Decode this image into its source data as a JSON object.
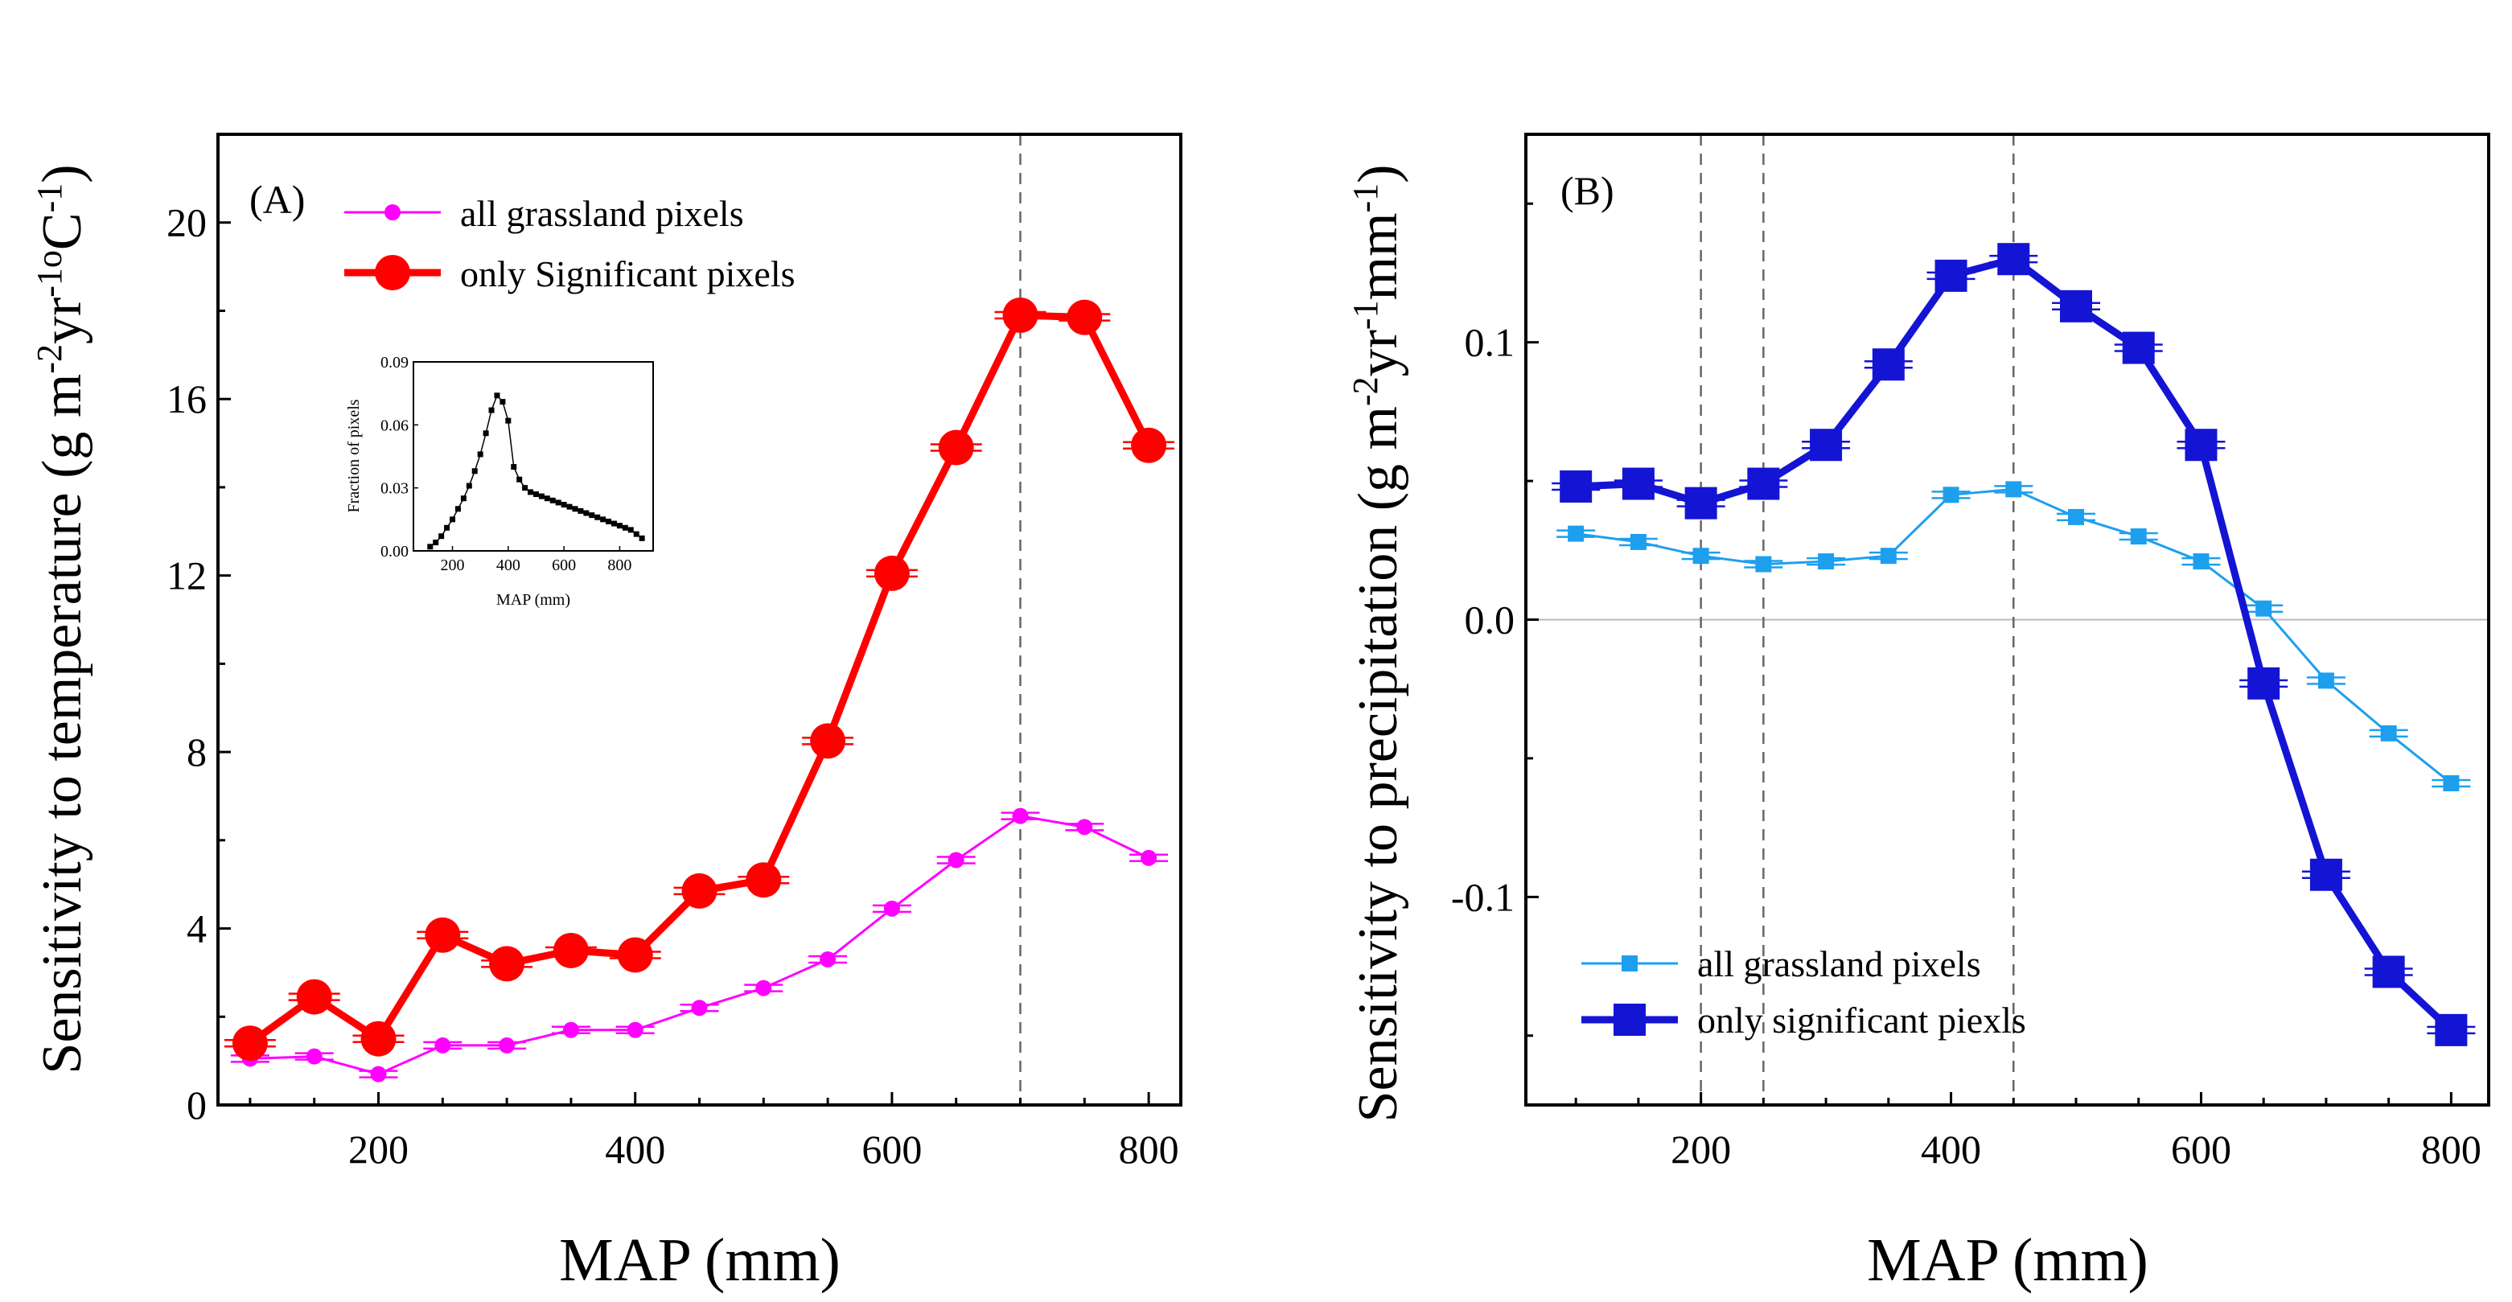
{
  "chart_data": [
    {
      "type": "line",
      "panel_label": "(A)",
      "xlabel": "MAP (mm)",
      "ylabel_parts": [
        "Sensitivity to temperature (g m",
        "-2",
        "yr",
        "-1o",
        "C",
        "-1",
        ")"
      ],
      "xlim": [
        75,
        825
      ],
      "ylim": [
        0,
        22
      ],
      "xticks": [
        200,
        400,
        600,
        800
      ],
      "xtick_labels": [
        "200",
        "400",
        "600",
        "800"
      ],
      "yticks": [
        0,
        4,
        8,
        12,
        16,
        20
      ],
      "ytick_labels": [
        "0",
        "4",
        "8",
        "12",
        "16",
        "20"
      ],
      "vlines": [
        700
      ],
      "legend_position": "top-left",
      "series": [
        {
          "name": "all grassland pixels",
          "color": "#ff00ff",
          "marker": "circle",
          "x": [
            100,
            150,
            200,
            250,
            300,
            350,
            400,
            450,
            500,
            550,
            600,
            650,
            700,
            750,
            800
          ],
          "values": [
            1.05,
            1.1,
            0.7,
            1.35,
            1.35,
            1.7,
            1.7,
            2.2,
            2.65,
            3.3,
            4.45,
            5.55,
            6.55,
            6.3,
            5.6
          ]
        },
        {
          "name": "only Significant pixels",
          "color": "#ff0000",
          "marker": "circle-large",
          "x": [
            100,
            150,
            200,
            250,
            300,
            350,
            400,
            450,
            500,
            550,
            600,
            650,
            700,
            750,
            800
          ],
          "values": [
            1.4,
            2.45,
            1.5,
            3.85,
            3.2,
            3.5,
            3.4,
            4.85,
            5.1,
            8.25,
            12.05,
            14.9,
            17.9,
            17.85,
            14.95
          ]
        }
      ],
      "inset": {
        "type": "line",
        "xlabel": "MAP (mm)",
        "ylabel": "Fraction of pixels",
        "xlim": [
          60,
          920
        ],
        "ylim": [
          0,
          0.09
        ],
        "xticks": [
          200,
          400,
          600,
          800
        ],
        "xtick_labels": [
          "200",
          "400",
          "600",
          "800"
        ],
        "yticks": [
          0,
          0.03,
          0.06,
          0.09
        ],
        "ytick_labels": [
          "0.00",
          "0.03",
          "0.06",
          "0.09"
        ],
        "x": [
          120,
          140,
          160,
          180,
          200,
          220,
          240,
          260,
          280,
          300,
          320,
          340,
          360,
          380,
          400,
          420,
          440,
          460,
          480,
          500,
          520,
          540,
          560,
          580,
          600,
          620,
          640,
          660,
          680,
          700,
          720,
          740,
          760,
          780,
          800,
          820,
          840,
          860,
          880
        ],
        "values": [
          0.002,
          0.004,
          0.007,
          0.011,
          0.015,
          0.02,
          0.025,
          0.031,
          0.038,
          0.046,
          0.056,
          0.067,
          0.074,
          0.071,
          0.062,
          0.04,
          0.034,
          0.03,
          0.028,
          0.027,
          0.026,
          0.025,
          0.024,
          0.023,
          0.022,
          0.021,
          0.02,
          0.019,
          0.018,
          0.017,
          0.016,
          0.015,
          0.014,
          0.013,
          0.012,
          0.011,
          0.01,
          0.008,
          0.006
        ]
      }
    },
    {
      "type": "line",
      "panel_label": "(B)",
      "xlabel": "MAP (mm)",
      "ylabel_parts": [
        "Sensitivity to precipitation (g m",
        "-2",
        "yr",
        "-1",
        "mm",
        "-1",
        ")"
      ],
      "xlim": [
        60,
        830
      ],
      "ylim": [
        -0.175,
        0.175
      ],
      "xticks": [
        200,
        400,
        600,
        800
      ],
      "xtick_labels": [
        "200",
        "400",
        "600",
        "800"
      ],
      "yticks": [
        -0.1,
        0.0,
        0.1
      ],
      "ytick_labels": [
        "-0.1",
        "0.0",
        "0.1"
      ],
      "vlines": [
        200,
        250,
        450
      ],
      "hline": 0,
      "legend_position": "bottom-left",
      "series": [
        {
          "name": "all grassland pixels",
          "color": "#1e9fee",
          "marker": "square",
          "x": [
            100,
            150,
            200,
            250,
            300,
            350,
            400,
            450,
            500,
            550,
            600,
            650,
            700,
            750,
            800
          ],
          "values": [
            0.031,
            0.028,
            0.023,
            0.02,
            0.021,
            0.023,
            0.045,
            0.047,
            0.037,
            0.03,
            0.021,
            0.004,
            -0.022,
            -0.041,
            -0.059
          ]
        },
        {
          "name": "only significant piexls",
          "color": "#1414d4",
          "marker": "square-large",
          "x": [
            100,
            150,
            200,
            250,
            300,
            350,
            400,
            450,
            500,
            550,
            600,
            650,
            700,
            750,
            800
          ],
          "values": [
            0.048,
            0.049,
            0.042,
            0.049,
            0.063,
            0.092,
            0.124,
            0.13,
            0.113,
            0.098,
            0.063,
            -0.023,
            -0.092,
            -0.127,
            -0.148
          ]
        }
      ]
    }
  ]
}
